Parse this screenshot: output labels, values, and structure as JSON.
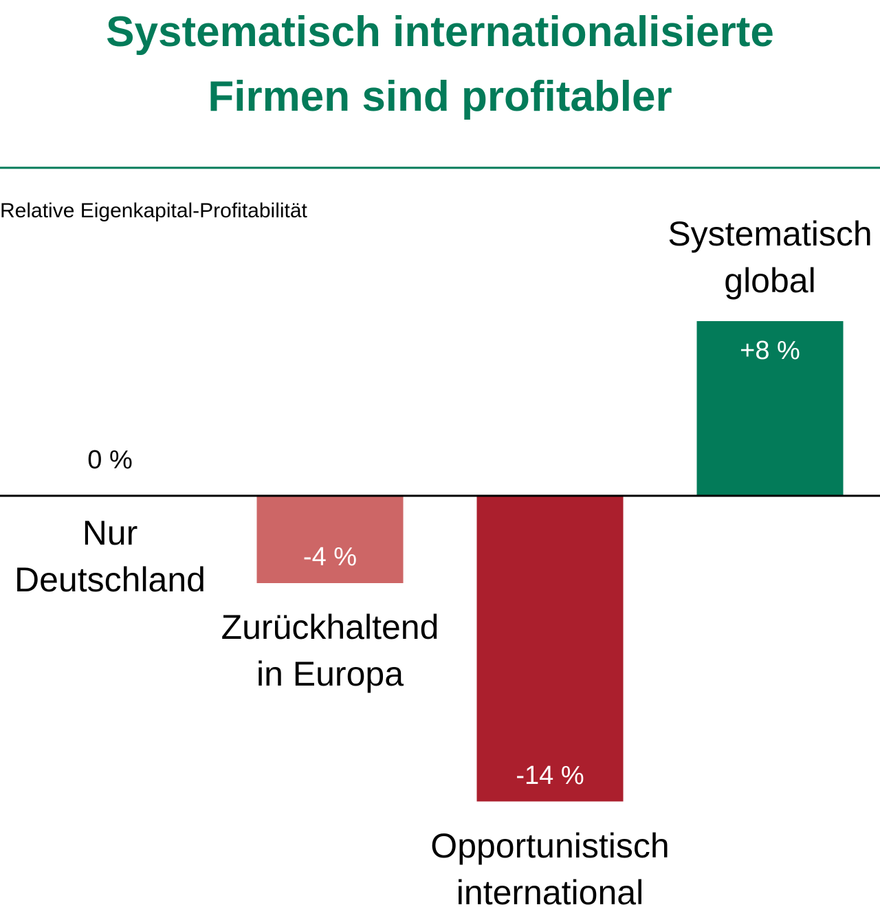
{
  "chart_data": {
    "type": "bar",
    "title": "Systematisch internationalisierte\nFirmen sind profitabler",
    "subtitle": "Relative Eigenkapital-Profitabilität",
    "categories": [
      "Nur\nDeutschland",
      "Zurückhaltend\nin Europa",
      "Opportunistisch\ninternational",
      "Systematisch\nglobal"
    ],
    "values": [
      0,
      -4,
      -14,
      8
    ],
    "value_labels": [
      "0 %",
      "-4 %",
      "-14 %",
      "+8 %"
    ],
    "colors": [
      "#037b59",
      "#cd6666",
      "#ab1f2d",
      "#037b59"
    ]
  }
}
